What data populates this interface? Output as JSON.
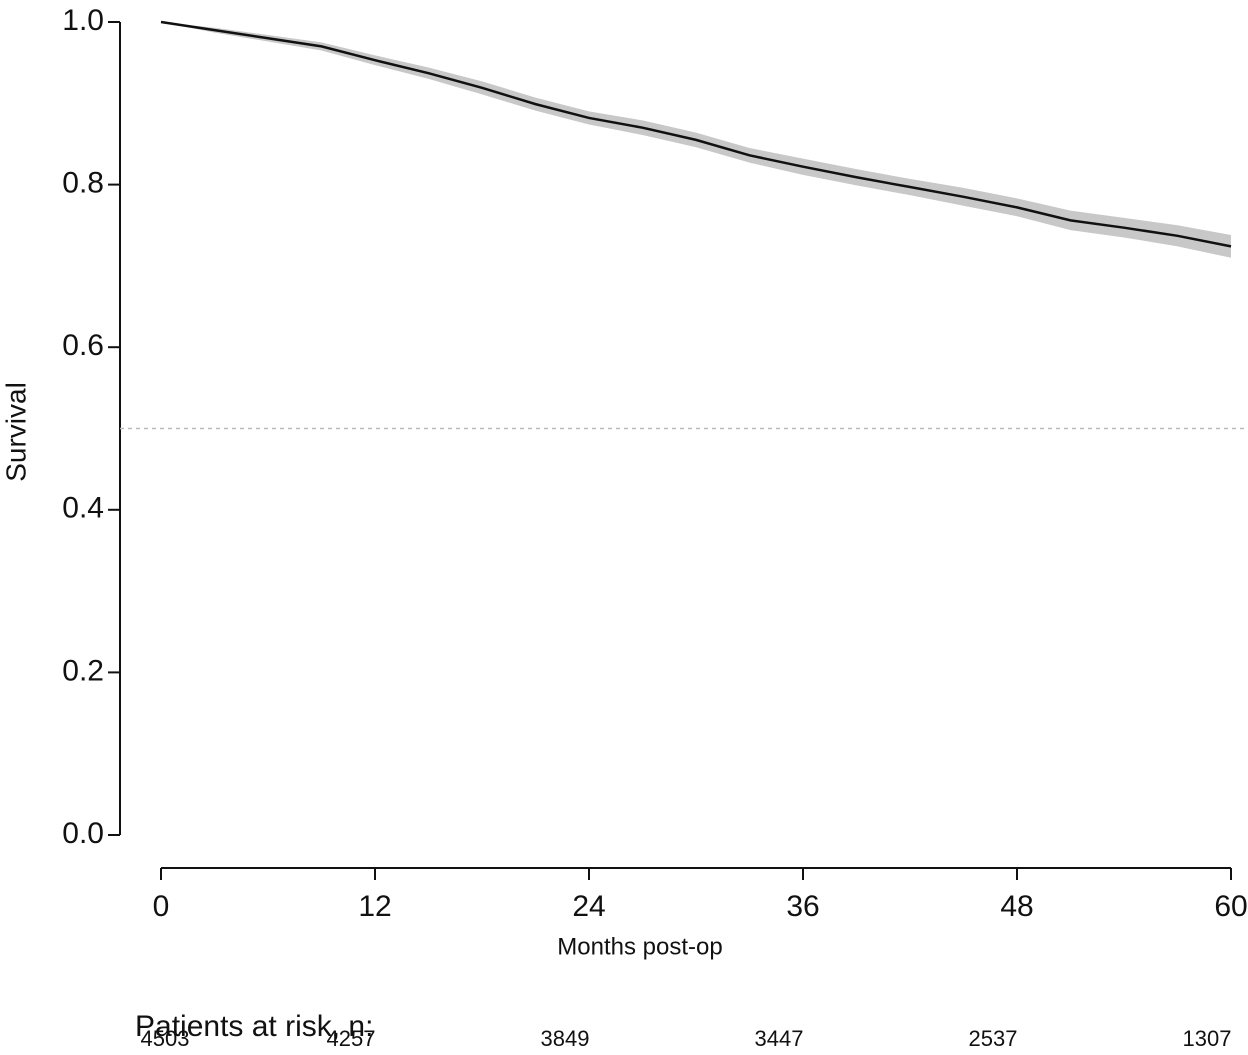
{
  "chart_data": {
    "type": "line",
    "x_label": "Months post-op",
    "y_label": "Survival",
    "x": [
      0,
      3,
      6,
      9,
      12,
      15,
      18,
      21,
      24,
      27,
      30,
      33,
      36,
      39,
      42,
      45,
      48,
      51,
      54,
      57,
      60
    ],
    "series": [
      {
        "color": "#111111",
        "values": [
          1.0,
          0.99,
          0.98,
          0.97,
          0.953,
          0.937,
          0.919,
          0.899,
          0.882,
          0.87,
          0.855,
          0.836,
          0.822,
          0.809,
          0.797,
          0.785,
          0.772,
          0.756,
          0.747,
          0.737,
          0.724
        ]
      }
    ],
    "ci_upper": [
      1.0,
      0.993,
      0.984,
      0.975,
      0.959,
      0.944,
      0.927,
      0.907,
      0.89,
      0.879,
      0.864,
      0.845,
      0.832,
      0.819,
      0.807,
      0.796,
      0.783,
      0.768,
      0.759,
      0.75,
      0.738
    ],
    "ci_lower": [
      1.0,
      0.987,
      0.976,
      0.965,
      0.947,
      0.93,
      0.911,
      0.891,
      0.874,
      0.861,
      0.846,
      0.827,
      0.812,
      0.799,
      0.787,
      0.774,
      0.761,
      0.744,
      0.735,
      0.724,
      0.71
    ],
    "ci_color": "#c8c8c8",
    "reference_line": 0.5,
    "xlim": [
      0,
      60
    ],
    "xticks": [
      0,
      12,
      24,
      36,
      48,
      60
    ],
    "ylim": [
      0,
      1
    ],
    "yticks": [
      {
        "value": 0,
        "label": "0.0"
      },
      0.2,
      0.4,
      0.6,
      0.8,
      {
        "value": 1,
        "label": "1.0"
      }
    ],
    "risk_table": {
      "title": "Patients at risk, n:",
      "values": [
        4503,
        4257,
        3849,
        3447,
        2537,
        1307
      ]
    }
  }
}
